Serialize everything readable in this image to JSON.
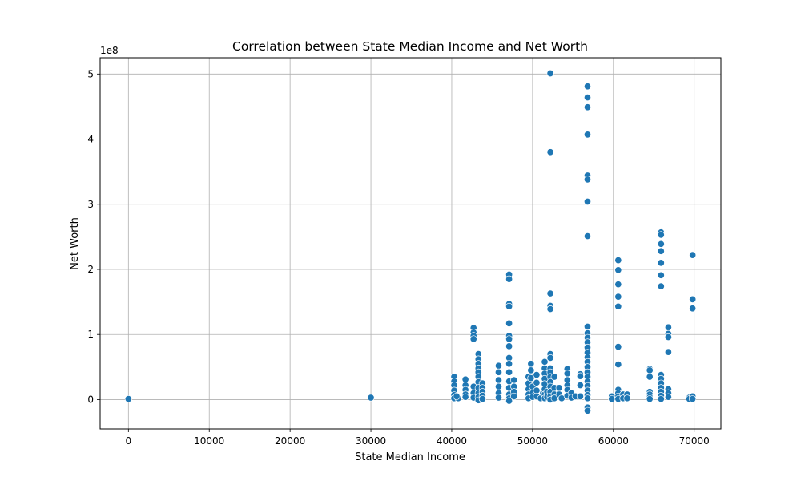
{
  "chart_data": {
    "type": "scatter",
    "title": "Correlation between State Median Income and Net Worth",
    "xlabel": "State Median Income",
    "ylabel": "Net Worth",
    "y_offset_label": "1e8",
    "xlim": [
      -3500,
      73300
    ],
    "ylim": [
      -0.45,
      5.25
    ],
    "y_unit_multiplier": 100000000,
    "x_ticks": [
      0,
      10000,
      20000,
      30000,
      40000,
      50000,
      60000,
      70000
    ],
    "x_tick_labels": [
      "0",
      "10000",
      "20000",
      "30000",
      "40000",
      "50000",
      "60000",
      "70000"
    ],
    "y_ticks": [
      0,
      1,
      2,
      3,
      4,
      5
    ],
    "y_tick_labels": [
      "0",
      "1",
      "2",
      "3",
      "4",
      "5"
    ],
    "grid": true,
    "marker_color": "#1f77b4",
    "marker_edge_color": "#ffffff",
    "points": [
      {
        "x": 0,
        "y": 0.01
      },
      {
        "x": 30000,
        "y": 0.03
      },
      {
        "x": 40300,
        "y": 0.35
      },
      {
        "x": 40300,
        "y": 0.28
      },
      {
        "x": 40300,
        "y": 0.22
      },
      {
        "x": 40300,
        "y": 0.14
      },
      {
        "x": 40300,
        "y": 0.07
      },
      {
        "x": 40300,
        "y": 0.02
      },
      {
        "x": 40800,
        "y": 0.02
      },
      {
        "x": 40600,
        "y": 0.05
      },
      {
        "x": 41700,
        "y": 0.31
      },
      {
        "x": 41700,
        "y": 0.22
      },
      {
        "x": 41700,
        "y": 0.15
      },
      {
        "x": 41700,
        "y": 0.08
      },
      {
        "x": 41700,
        "y": 0.04
      },
      {
        "x": 42700,
        "y": 1.1
      },
      {
        "x": 42700,
        "y": 1.03
      },
      {
        "x": 42700,
        "y": 0.98
      },
      {
        "x": 42700,
        "y": 0.93
      },
      {
        "x": 42700,
        "y": 0.2
      },
      {
        "x": 42700,
        "y": 0.1
      },
      {
        "x": 42700,
        "y": 0.03
      },
      {
        "x": 43300,
        "y": 0.7
      },
      {
        "x": 43300,
        "y": 0.62
      },
      {
        "x": 43300,
        "y": 0.55
      },
      {
        "x": 43300,
        "y": 0.48
      },
      {
        "x": 43300,
        "y": 0.42
      },
      {
        "x": 43300,
        "y": 0.35
      },
      {
        "x": 43300,
        "y": 0.27
      },
      {
        "x": 43300,
        "y": 0.18
      },
      {
        "x": 43300,
        "y": 0.1
      },
      {
        "x": 43300,
        "y": 0.04
      },
      {
        "x": 43300,
        "y": -0.01
      },
      {
        "x": 43800,
        "y": 0.25
      },
      {
        "x": 43800,
        "y": 0.18
      },
      {
        "x": 43800,
        "y": 0.12
      },
      {
        "x": 43800,
        "y": 0.06
      },
      {
        "x": 43800,
        "y": 0.01
      },
      {
        "x": 45800,
        "y": 0.52
      },
      {
        "x": 45800,
        "y": 0.42
      },
      {
        "x": 45800,
        "y": 0.3
      },
      {
        "x": 45800,
        "y": 0.2
      },
      {
        "x": 45800,
        "y": 0.1
      },
      {
        "x": 45800,
        "y": 0.03
      },
      {
        "x": 47100,
        "y": 1.92
      },
      {
        "x": 47100,
        "y": 1.85
      },
      {
        "x": 47100,
        "y": 1.47
      },
      {
        "x": 47100,
        "y": 1.43
      },
      {
        "x": 47100,
        "y": 1.17
      },
      {
        "x": 47100,
        "y": 0.98
      },
      {
        "x": 47100,
        "y": 0.93
      },
      {
        "x": 47100,
        "y": 0.82
      },
      {
        "x": 47100,
        "y": 0.64
      },
      {
        "x": 47100,
        "y": 0.55
      },
      {
        "x": 47100,
        "y": 0.42
      },
      {
        "x": 47100,
        "y": 0.28
      },
      {
        "x": 47100,
        "y": 0.18
      },
      {
        "x": 47100,
        "y": 0.08
      },
      {
        "x": 47100,
        "y": 0.02
      },
      {
        "x": 47100,
        "y": -0.02
      },
      {
        "x": 47700,
        "y": 0.3
      },
      {
        "x": 47700,
        "y": 0.2
      },
      {
        "x": 47700,
        "y": 0.12
      },
      {
        "x": 47700,
        "y": 0.05
      },
      {
        "x": 49500,
        "y": 0.35
      },
      {
        "x": 49500,
        "y": 0.25
      },
      {
        "x": 49500,
        "y": 0.16
      },
      {
        "x": 49500,
        "y": 0.08
      },
      {
        "x": 49500,
        "y": 0.02
      },
      {
        "x": 49800,
        "y": 0.55
      },
      {
        "x": 49800,
        "y": 0.45
      },
      {
        "x": 49800,
        "y": 0.33
      },
      {
        "x": 50000,
        "y": 0.2
      },
      {
        "x": 50000,
        "y": 0.1
      },
      {
        "x": 50000,
        "y": 0.04
      },
      {
        "x": 50500,
        "y": 0.38
      },
      {
        "x": 50500,
        "y": 0.26
      },
      {
        "x": 50500,
        "y": 0.14
      },
      {
        "x": 50500,
        "y": 0.05
      },
      {
        "x": 51000,
        "y": 0.02
      },
      {
        "x": 51300,
        "y": 0.1
      },
      {
        "x": 51500,
        "y": 0.58
      },
      {
        "x": 51500,
        "y": 0.48
      },
      {
        "x": 51500,
        "y": 0.4
      },
      {
        "x": 51500,
        "y": 0.32
      },
      {
        "x": 51500,
        "y": 0.24
      },
      {
        "x": 51500,
        "y": 0.16
      },
      {
        "x": 51500,
        "y": 0.08
      },
      {
        "x": 51500,
        "y": 0.02
      },
      {
        "x": 51800,
        "y": 0.12
      },
      {
        "x": 51800,
        "y": 0.04
      },
      {
        "x": 52200,
        "y": 5.01
      },
      {
        "x": 52200,
        "y": 3.8
      },
      {
        "x": 52200,
        "y": 1.63
      },
      {
        "x": 52200,
        "y": 1.44
      },
      {
        "x": 52200,
        "y": 1.39
      },
      {
        "x": 52200,
        "y": 0.7
      },
      {
        "x": 52200,
        "y": 0.64
      },
      {
        "x": 52200,
        "y": 0.48
      },
      {
        "x": 52200,
        "y": 0.42
      },
      {
        "x": 52200,
        "y": 0.35
      },
      {
        "x": 52200,
        "y": 0.27
      },
      {
        "x": 52200,
        "y": 0.2
      },
      {
        "x": 52200,
        "y": 0.12
      },
      {
        "x": 52200,
        "y": 0.05
      },
      {
        "x": 52200,
        "y": 0.0
      },
      {
        "x": 52700,
        "y": 0.35
      },
      {
        "x": 52700,
        "y": 0.18
      },
      {
        "x": 52700,
        "y": 0.08
      },
      {
        "x": 52700,
        "y": 0.02
      },
      {
        "x": 53300,
        "y": 0.18
      },
      {
        "x": 53300,
        "y": 0.08
      },
      {
        "x": 53600,
        "y": 0.02
      },
      {
        "x": 54300,
        "y": 0.47
      },
      {
        "x": 54300,
        "y": 0.4
      },
      {
        "x": 54300,
        "y": 0.3
      },
      {
        "x": 54300,
        "y": 0.22
      },
      {
        "x": 54300,
        "y": 0.15
      },
      {
        "x": 54300,
        "y": 0.06
      },
      {
        "x": 54800,
        "y": 0.1
      },
      {
        "x": 54800,
        "y": 0.03
      },
      {
        "x": 55300,
        "y": 0.05
      },
      {
        "x": 55900,
        "y": 0.39
      },
      {
        "x": 55900,
        "y": 0.36
      },
      {
        "x": 55900,
        "y": 0.22
      },
      {
        "x": 55900,
        "y": 0.05
      },
      {
        "x": 56800,
        "y": 4.81
      },
      {
        "x": 56800,
        "y": 4.64
      },
      {
        "x": 56800,
        "y": 4.49
      },
      {
        "x": 56800,
        "y": 4.07
      },
      {
        "x": 56800,
        "y": 3.44
      },
      {
        "x": 56800,
        "y": 3.38
      },
      {
        "x": 56800,
        "y": 3.04
      },
      {
        "x": 56800,
        "y": 2.51
      },
      {
        "x": 56800,
        "y": 1.12
      },
      {
        "x": 56800,
        "y": 1.02
      },
      {
        "x": 56800,
        "y": 0.95
      },
      {
        "x": 56800,
        "y": 0.88
      },
      {
        "x": 56800,
        "y": 0.8
      },
      {
        "x": 56800,
        "y": 0.72
      },
      {
        "x": 56800,
        "y": 0.65
      },
      {
        "x": 56800,
        "y": 0.58
      },
      {
        "x": 56800,
        "y": 0.5
      },
      {
        "x": 56800,
        "y": 0.42
      },
      {
        "x": 56800,
        "y": 0.35
      },
      {
        "x": 56800,
        "y": 0.28
      },
      {
        "x": 56800,
        "y": 0.21
      },
      {
        "x": 56800,
        "y": 0.14
      },
      {
        "x": 56800,
        "y": 0.07
      },
      {
        "x": 56800,
        "y": 0.02
      },
      {
        "x": 56800,
        "y": -0.12
      },
      {
        "x": 56800,
        "y": -0.17
      },
      {
        "x": 59800,
        "y": 0.05
      },
      {
        "x": 59800,
        "y": 0.01
      },
      {
        "x": 60600,
        "y": 2.14
      },
      {
        "x": 60600,
        "y": 1.99
      },
      {
        "x": 60600,
        "y": 1.77
      },
      {
        "x": 60600,
        "y": 1.58
      },
      {
        "x": 60600,
        "y": 1.43
      },
      {
        "x": 60600,
        "y": 0.81
      },
      {
        "x": 60600,
        "y": 0.54
      },
      {
        "x": 60600,
        "y": 0.15
      },
      {
        "x": 60600,
        "y": 0.1
      },
      {
        "x": 60600,
        "y": 0.05
      },
      {
        "x": 60600,
        "y": 0.01
      },
      {
        "x": 61200,
        "y": 0.08
      },
      {
        "x": 61200,
        "y": 0.02
      },
      {
        "x": 61700,
        "y": 0.08
      },
      {
        "x": 61700,
        "y": 0.02
      },
      {
        "x": 64500,
        "y": 0.47
      },
      {
        "x": 64500,
        "y": 0.45
      },
      {
        "x": 64500,
        "y": 0.35
      },
      {
        "x": 64500,
        "y": 0.12
      },
      {
        "x": 64500,
        "y": 0.08
      },
      {
        "x": 64500,
        "y": 0.04
      },
      {
        "x": 64500,
        "y": 0.01
      },
      {
        "x": 65900,
        "y": 2.57
      },
      {
        "x": 65900,
        "y": 2.53
      },
      {
        "x": 65900,
        "y": 2.39
      },
      {
        "x": 65900,
        "y": 2.28
      },
      {
        "x": 65900,
        "y": 2.1
      },
      {
        "x": 65900,
        "y": 1.91
      },
      {
        "x": 65900,
        "y": 1.74
      },
      {
        "x": 65900,
        "y": 0.38
      },
      {
        "x": 65900,
        "y": 0.32
      },
      {
        "x": 65900,
        "y": 0.25
      },
      {
        "x": 65900,
        "y": 0.18
      },
      {
        "x": 65900,
        "y": 0.12
      },
      {
        "x": 65900,
        "y": 0.06
      },
      {
        "x": 65900,
        "y": 0.01
      },
      {
        "x": 66800,
        "y": 1.11
      },
      {
        "x": 66800,
        "y": 1.01
      },
      {
        "x": 66800,
        "y": 0.96
      },
      {
        "x": 66800,
        "y": 0.73
      },
      {
        "x": 66800,
        "y": 0.16
      },
      {
        "x": 66800,
        "y": 0.1
      },
      {
        "x": 66800,
        "y": 0.04
      },
      {
        "x": 69400,
        "y": 0.03
      },
      {
        "x": 69400,
        "y": 0.01
      },
      {
        "x": 69800,
        "y": 2.22
      },
      {
        "x": 69800,
        "y": 1.54
      },
      {
        "x": 69800,
        "y": 1.4
      },
      {
        "x": 69800,
        "y": 0.05
      },
      {
        "x": 69800,
        "y": 0.01
      }
    ]
  }
}
